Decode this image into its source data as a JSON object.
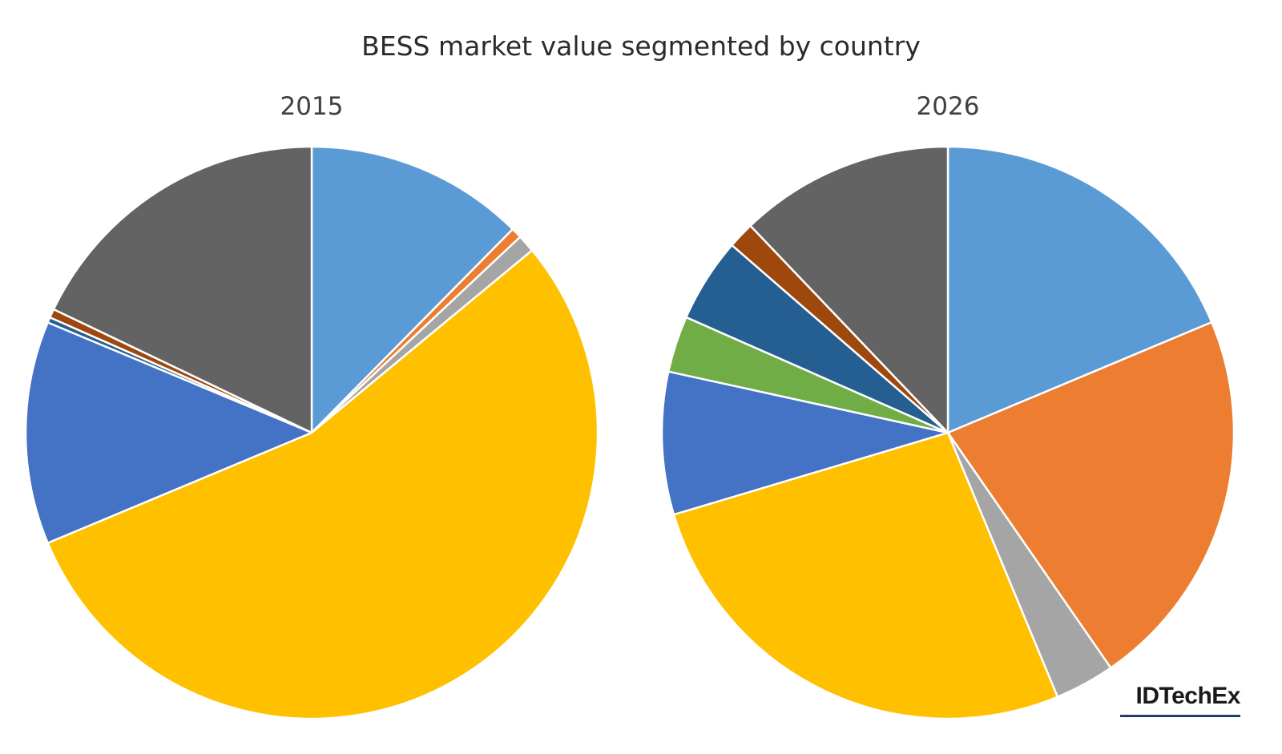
{
  "chart_title": "BESS market value segmented by country",
  "logo": "IDTechEx",
  "chart_data": [
    {
      "type": "pie",
      "title": "2015",
      "start_angle_deg": 0,
      "direction": "clockwise",
      "slices": [
        {
          "value": 12.4,
          "color": "#5b9bd5"
        },
        {
          "value": 0.6,
          "color": "#ed7d31"
        },
        {
          "value": 1.0,
          "color": "#a5a5a5"
        },
        {
          "value": 54.7,
          "color": "#ffc000"
        },
        {
          "value": 12.6,
          "color": "#4472c4"
        },
        {
          "value": 0.3,
          "color": "#255e91"
        },
        {
          "value": 0.5,
          "color": "#9e480e"
        },
        {
          "value": 17.9,
          "color": "#636363"
        }
      ]
    },
    {
      "type": "pie",
      "title": "2026",
      "start_angle_deg": 0,
      "direction": "clockwise",
      "slices": [
        {
          "value": 18.8,
          "color": "#5b9bd5"
        },
        {
          "value": 21.8,
          "color": "#ed7d31"
        },
        {
          "value": 3.4,
          "color": "#a5a5a5"
        },
        {
          "value": 26.8,
          "color": "#ffc000"
        },
        {
          "value": 8.1,
          "color": "#4472c4"
        },
        {
          "value": 3.2,
          "color": "#70ad47"
        },
        {
          "value": 4.8,
          "color": "#255e91"
        },
        {
          "value": 1.5,
          "color": "#9e480e"
        },
        {
          "value": 12.2,
          "color": "#636363"
        }
      ]
    }
  ]
}
